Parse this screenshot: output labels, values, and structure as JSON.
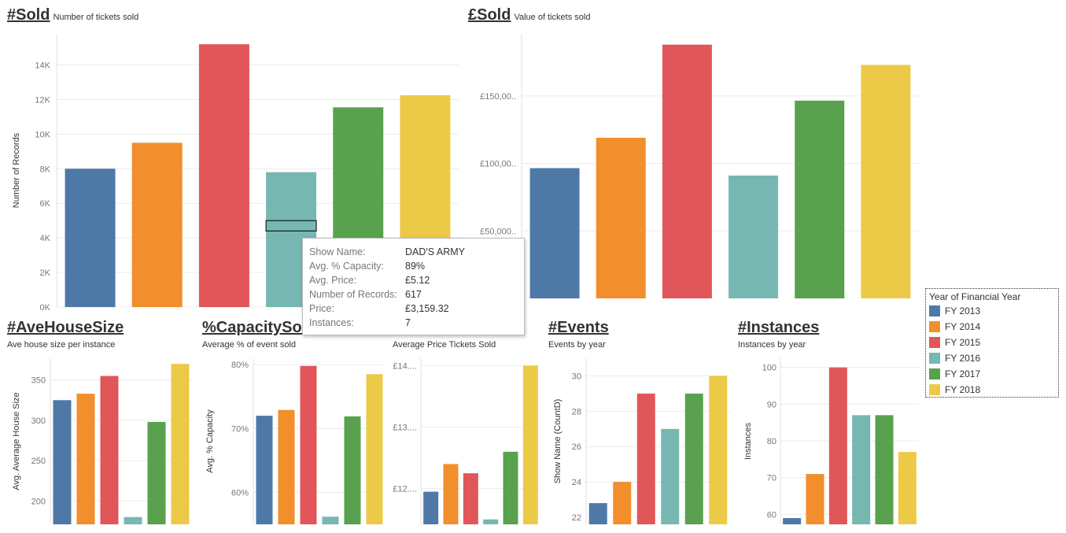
{
  "colors": [
    "#4e79a7",
    "#f28e2b",
    "#e15759",
    "#76b7b2",
    "#59a14f",
    "#edc948"
  ],
  "charts": {
    "sold": {
      "title": "#Sold",
      "subtitle": "Number of tickets sold"
    },
    "value": {
      "title": "£Sold",
      "subtitle": "Value of tickets sold"
    },
    "house": {
      "title": "#AveHouseSize",
      "subtitle": "Ave house size per instance"
    },
    "capacity": {
      "title": "%CapacitySold",
      "subtitle": "Average % of event sold"
    },
    "price": {
      "title": "",
      "subtitle": "Average Price Tickets Sold"
    },
    "events": {
      "title": "#Events",
      "subtitle": "Events by year"
    },
    "instances": {
      "title": "#Instances",
      "subtitle": "Instances by year"
    }
  },
  "legend": {
    "title": "Year of Financial Year",
    "items": [
      "FY 2013",
      "FY 2014",
      "FY 2015",
      "FY 2016",
      "FY 2017",
      "FY 2018"
    ]
  },
  "tooltip": {
    "rows": [
      {
        "key": "Show Name:",
        "value": "DAD'S ARMY"
      },
      {
        "key": "Avg. % Capacity:",
        "value": "89%"
      },
      {
        "key": "Avg. Price:",
        "value": "£5.12"
      },
      {
        "key": "Number of Records:",
        "value": "617"
      },
      {
        "key": "Price:",
        "value": "£3,159.32"
      },
      {
        "key": "Instances:",
        "value": "7"
      }
    ]
  },
  "chart_data": [
    {
      "id": "sold",
      "type": "bar",
      "title": "#Sold",
      "subtitle": "Number of tickets sold",
      "ylabel": "Number of Records",
      "categories": [
        "FY 2013",
        "FY 2014",
        "FY 2015",
        "FY 2016",
        "FY 2017",
        "FY 2018"
      ],
      "values": [
        8000,
        9500,
        15200,
        7800,
        11550,
        12250
      ],
      "ylim": [
        0,
        15800
      ],
      "ticks": [
        0,
        2000,
        4000,
        6000,
        8000,
        10000,
        12000,
        14000
      ],
      "tick_labels": [
        "0K",
        "2K",
        "4K",
        "6K",
        "8K",
        "10K",
        "12K",
        "14K"
      ],
      "highlight": {
        "bar": 3,
        "from": 4400,
        "to": 5000
      }
    },
    {
      "id": "value",
      "type": "bar",
      "title": "£Sold",
      "subtitle": "Value of tickets sold",
      "ylabel": "",
      "categories": [
        "FY 2013",
        "FY 2014",
        "FY 2015",
        "FY 2016",
        "FY 2017",
        "FY 2018"
      ],
      "values": [
        96500,
        119000,
        188000,
        91000,
        146500,
        173000
      ],
      "ylim": [
        0,
        196000
      ],
      "ticks": [
        50000,
        100000,
        150000
      ],
      "tick_labels": [
        "£50,000..",
        "£100,00..",
        "£150,00.."
      ]
    },
    {
      "id": "house",
      "type": "bar",
      "title": "#AveHouseSize",
      "subtitle": "Ave house size per instance",
      "ylabel": "Avg. Average House Size",
      "categories": [
        "FY 2013",
        "FY 2014",
        "FY 2015",
        "FY 2016",
        "FY 2017",
        "FY 2018"
      ],
      "values": [
        325,
        333,
        355,
        180,
        298,
        370
      ],
      "ylim": [
        171,
        377
      ],
      "ticks": [
        200,
        250,
        300,
        350
      ],
      "tick_labels": [
        "200",
        "250",
        "300",
        "350"
      ]
    },
    {
      "id": "capacity",
      "type": "bar",
      "title": "%CapacitySold",
      "subtitle": "Average % of event sold",
      "ylabel": "Avg. % Capacity",
      "categories": [
        "FY 2013",
        "FY 2014",
        "FY 2015",
        "FY 2016",
        "FY 2017",
        "FY 2018"
      ],
      "values": [
        72.0,
        72.9,
        79.8,
        56.2,
        71.9,
        78.5
      ],
      "ylim": [
        55,
        81
      ],
      "ticks": [
        60,
        70,
        80
      ],
      "tick_labels": [
        "60%",
        "70%",
        "80%"
      ]
    },
    {
      "id": "price",
      "type": "bar",
      "title": "",
      "subtitle": "Average Price Tickets Sold",
      "ylabel": "",
      "categories": [
        "FY 2013",
        "FY 2014",
        "FY 2015",
        "FY 2016",
        "FY 2017",
        "FY 2018"
      ],
      "values": [
        11.95,
        12.4,
        12.25,
        11.5,
        12.6,
        14.0
      ],
      "ylim": [
        11.42,
        14.12
      ],
      "ticks": [
        12,
        13,
        14
      ],
      "tick_labels": [
        "£12....",
        "£13....",
        "£14...."
      ]
    },
    {
      "id": "events",
      "type": "bar",
      "title": "#Events",
      "subtitle": "Events by year",
      "ylabel": "Show Name (CountD)",
      "categories": [
        "FY 2013",
        "FY 2014",
        "FY 2015",
        "FY 2016",
        "FY 2017",
        "FY 2018"
      ],
      "values": [
        22.8,
        24.0,
        29.0,
        27.0,
        29.0,
        30.0
      ],
      "ylim": [
        21.6,
        31.0
      ],
      "ticks": [
        22,
        24,
        26,
        28,
        30
      ],
      "tick_labels": [
        "22",
        "24",
        "26",
        "28",
        "30"
      ]
    },
    {
      "id": "instances",
      "type": "bar",
      "title": "#Instances",
      "subtitle": "Instances by year",
      "ylabel": "Instances",
      "categories": [
        "FY 2013",
        "FY 2014",
        "FY 2015",
        "FY 2016",
        "FY 2017",
        "FY 2018"
      ],
      "values": [
        59,
        71,
        100,
        87,
        87,
        77
      ],
      "ylim": [
        57.3,
        102.5
      ],
      "ticks": [
        60,
        70,
        80,
        90,
        100
      ],
      "tick_labels": [
        "60",
        "70",
        "80",
        "90",
        "100"
      ]
    }
  ]
}
